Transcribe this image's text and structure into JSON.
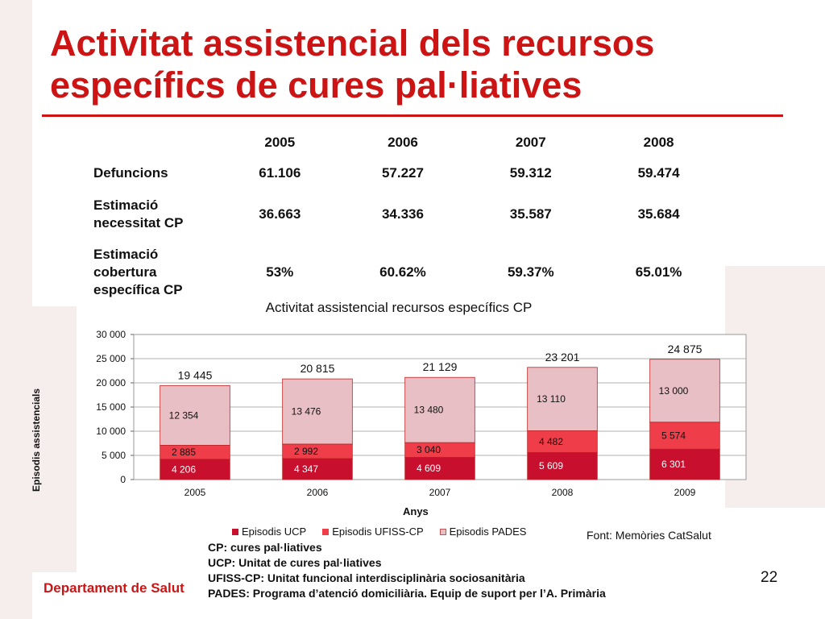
{
  "title": "Activitat  assistencial  dels recursos específics de cures pal·liatives",
  "table": {
    "years": [
      "2005",
      "2006",
      "2007",
      "2008"
    ],
    "rows": [
      {
        "label": "Defuncions",
        "values": [
          "61.106",
          "57.227",
          "59.312",
          "59.474"
        ]
      },
      {
        "label": "Estimació necessitat CP",
        "values": [
          "36.663",
          "34.336",
          "35.587",
          "35.684"
        ]
      },
      {
        "label": "Estimació cobertura específica CP",
        "values": [
          "53%",
          "60.62%",
          "59.37%",
          "65.01%"
        ]
      }
    ]
  },
  "chart_data": {
    "type": "bar",
    "stacked": true,
    "title": "Activitat assistencial recursos específics CP",
    "xlabel": "Anys",
    "ylabel": "Episodis assistencials",
    "categories": [
      "2005",
      "2006",
      "2007",
      "2008",
      "2009"
    ],
    "ylim": [
      0,
      30000
    ],
    "yticks": [
      "0",
      "5 000",
      "10 000",
      "15 000",
      "20 000",
      "25 000",
      "30 000"
    ],
    "ytick_values": [
      0,
      5000,
      10000,
      15000,
      20000,
      25000,
      30000
    ],
    "series": [
      {
        "name": "Episodis UCP",
        "values": [
          4206,
          4347,
          4609,
          5609,
          6301
        ],
        "labels": [
          "4 206",
          "4 347",
          "4 609",
          "5 609",
          "6 301"
        ],
        "color": "#c8102e"
      },
      {
        "name": "Episodis UFISS-CP",
        "values": [
          2885,
          2992,
          3040,
          4482,
          5574
        ],
        "labels": [
          "2 885",
          "2 992",
          "3 040",
          "4 482",
          "5 574"
        ],
        "color": "#ef3e4a"
      },
      {
        "name": "Episodis PADES",
        "values": [
          12354,
          13476,
          13480,
          13110,
          13000
        ],
        "labels": [
          "12 354",
          "13 476",
          "13 480",
          "13 110",
          "13 000"
        ],
        "color": "#e8bfc4"
      }
    ],
    "totals": [
      "19 445",
      "20 815",
      "21 129",
      "23 201",
      "24 875"
    ],
    "total_values": [
      19445,
      20815,
      21129,
      23201,
      24875
    ],
    "legend_position": "bottom",
    "grid": true
  },
  "source": "Font: Memòries CatSalut",
  "notes": [
    "CP: cures pal·liatives",
    "UCP: Unitat de cures pal·liatives",
    "UFISS-CP: Unitat  funcional interdisciplinària sociosanitària",
    "PADES: Programa d’atenció domiciliària. Equip de suport per l’A. Primària"
  ],
  "footer": {
    "department": "Departament de Salut",
    "page": "22"
  }
}
